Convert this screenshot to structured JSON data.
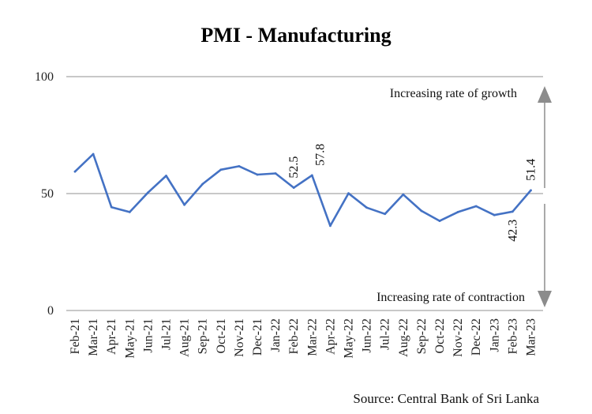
{
  "chart_data": {
    "type": "line",
    "title": "PMI - Manufacturing",
    "categories": [
      "Feb-21",
      "Mar-21",
      "Apr-21",
      "May-21",
      "Jun-21",
      "Jul-21",
      "Aug-21",
      "Sep-21",
      "Oct-21",
      "Nov-21",
      "Dec-21",
      "Jan-22",
      "Feb-22",
      "Mar-22",
      "Apr-22",
      "May-22",
      "Jun-22",
      "Jul-22",
      "Aug-22",
      "Sep-22",
      "Oct-22",
      "Nov-22",
      "Dec-22",
      "Jan-23",
      "Feb-23",
      "Mar-23"
    ],
    "series": [
      {
        "name": "PMI - Manufacturing",
        "color": "#4472C4",
        "values": [
          59.4,
          66.9,
          44.2,
          42.1,
          50.4,
          57.6,
          45.2,
          54.1,
          60.2,
          61.7,
          58.1,
          58.6,
          52.5,
          57.8,
          36.2,
          50.1,
          44.0,
          41.3,
          49.6,
          42.6,
          38.3,
          42.1,
          44.6,
          40.8,
          42.3,
          51.4
        ]
      }
    ],
    "ylim": [
      0,
      100
    ],
    "yticks": [
      0,
      50,
      100
    ],
    "xlabel": "",
    "ylabel": "",
    "data_labels": [
      {
        "category": "Feb-22",
        "text": "52.5"
      },
      {
        "category": "Mar-22",
        "text": "57.8"
      },
      {
        "category": "Mar-23",
        "text": "51.4"
      },
      {
        "category": "Feb-23",
        "text": "42.3"
      }
    ],
    "annotations": {
      "growth": "Increasing rate of growth",
      "contraction": "Increasing rate of contraction"
    },
    "source": "Source: Central Bank of Sri Lanka",
    "colors": {
      "line": "#4472C4",
      "grid": "#A6A6A6",
      "arrow": "#8C8C8C"
    }
  }
}
